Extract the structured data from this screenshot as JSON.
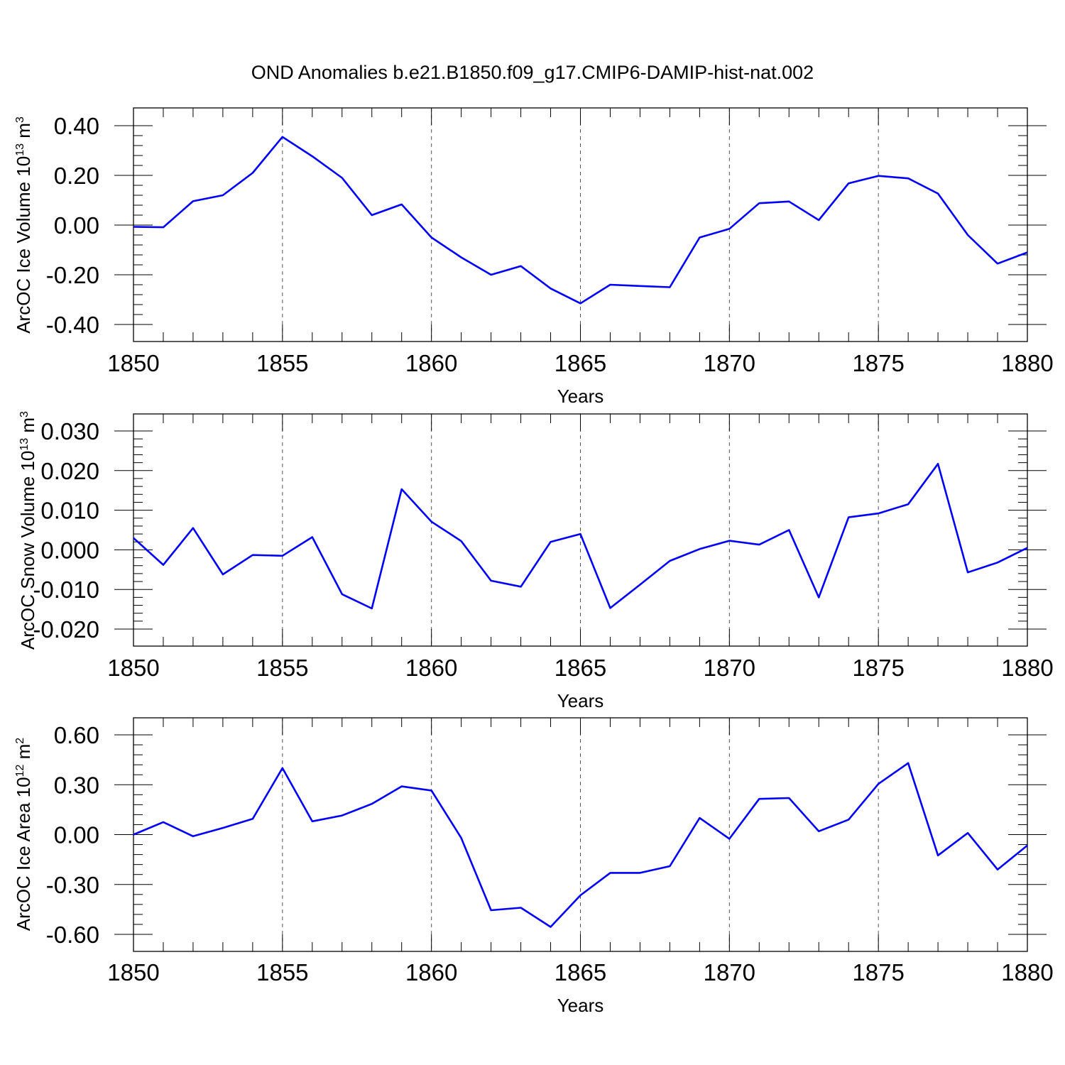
{
  "title": "OND Anomalies b.e21.B1850.f09_g17.CMIP6-DAMIP-hist-nat.002",
  "colors": {
    "line": "#0000ff",
    "axis": "#000000",
    "grid": "#555555"
  },
  "chart_data": [
    {
      "type": "line",
      "xlabel": "Years",
      "ylabel": {
        "text": "ArcOC Ice Volume 10",
        "sup1": "13",
        "mid": " m",
        "sup2": "3"
      },
      "xlim": [
        1850,
        1880
      ],
      "ylim": [
        -0.4,
        0.4
      ],
      "grid": "vertical dashed at major x ticks",
      "x_ticks": [
        "1850",
        "1855",
        "1860",
        "1865",
        "1870",
        "1875",
        "1880"
      ],
      "y_ticks": [
        {
          "value": 0.4,
          "label": "0.40"
        },
        {
          "value": 0.2,
          "label": "0.20"
        },
        {
          "value": 0.0,
          "label": "0.00"
        },
        {
          "value": -0.2,
          "label": "-0.20"
        },
        {
          "value": -0.4,
          "label": "-0.40"
        }
      ],
      "x": [
        1850,
        1851,
        1852,
        1853,
        1854,
        1855,
        1856,
        1857,
        1858,
        1859,
        1860,
        1861,
        1862,
        1863,
        1864,
        1865,
        1866,
        1867,
        1868,
        1869,
        1870,
        1871,
        1872,
        1873,
        1874,
        1875,
        1876,
        1877,
        1878,
        1879,
        1880
      ],
      "y": [
        -0.007,
        -0.009,
        0.096,
        0.12,
        0.21,
        0.355,
        0.277,
        0.19,
        0.04,
        0.083,
        -0.05,
        -0.13,
        -0.2,
        -0.165,
        -0.255,
        -0.315,
        -0.24,
        -0.245,
        -0.25,
        -0.05,
        -0.015,
        0.088,
        0.095,
        0.02,
        0.168,
        0.198,
        0.188,
        0.127,
        -0.04,
        -0.155,
        -0.11
      ]
    },
    {
      "type": "line",
      "xlabel": "Years",
      "ylabel": {
        "text": "ArcOC Snow Volume 10",
        "sup1": "13",
        "mid": " m",
        "sup2": "3"
      },
      "xlim": [
        1850,
        1880
      ],
      "ylim": [
        -0.02,
        0.03
      ],
      "grid": "vertical dashed at major x ticks",
      "x_ticks": [
        "1850",
        "1855",
        "1860",
        "1865",
        "1870",
        "1875",
        "1880"
      ],
      "y_ticks": [
        {
          "value": 0.03,
          "label": "0.030"
        },
        {
          "value": 0.02,
          "label": "0.020"
        },
        {
          "value": 0.01,
          "label": "0.010"
        },
        {
          "value": 0.0,
          "label": "0.000"
        },
        {
          "value": -0.01,
          "label": "-0.010"
        },
        {
          "value": -0.02,
          "label": "-0.020"
        }
      ],
      "x": [
        1850,
        1851,
        1852,
        1853,
        1854,
        1855,
        1856,
        1857,
        1858,
        1859,
        1860,
        1861,
        1862,
        1863,
        1864,
        1865,
        1866,
        1867,
        1868,
        1869,
        1870,
        1871,
        1872,
        1873,
        1874,
        1875,
        1876,
        1877,
        1878,
        1879,
        1880
      ],
      "y": [
        0.003,
        -0.0038,
        0.0055,
        -0.0062,
        -0.0013,
        -0.0015,
        0.0032,
        -0.0112,
        -0.0148,
        0.0153,
        0.0071,
        0.0022,
        -0.0078,
        -0.0093,
        0.002,
        0.004,
        -0.0147,
        -0.0088,
        -0.0028,
        0.0002,
        0.0023,
        0.0013,
        0.005,
        -0.012,
        0.0082,
        0.0092,
        0.0115,
        0.0217,
        -0.0057,
        -0.0032,
        0.0005
      ]
    },
    {
      "type": "line",
      "xlabel": "Years",
      "ylabel": {
        "text": "ArcOC Ice Area 10",
        "sup1": "12",
        "mid": " m",
        "sup2": "2"
      },
      "xlim": [
        1850,
        1880
      ],
      "ylim": [
        -0.6,
        0.6
      ],
      "grid": "vertical dashed at major x ticks",
      "x_ticks": [
        "1850",
        "1855",
        "1860",
        "1865",
        "1870",
        "1875",
        "1880"
      ],
      "y_ticks": [
        {
          "value": 0.6,
          "label": "0.60"
        },
        {
          "value": 0.3,
          "label": "0.30"
        },
        {
          "value": 0.0,
          "label": "0.00"
        },
        {
          "value": -0.3,
          "label": "-0.30"
        },
        {
          "value": -0.6,
          "label": "-0.60"
        }
      ],
      "x": [
        1850,
        1851,
        1852,
        1853,
        1854,
        1855,
        1856,
        1857,
        1858,
        1859,
        1860,
        1861,
        1862,
        1863,
        1864,
        1865,
        1866,
        1867,
        1868,
        1869,
        1870,
        1871,
        1872,
        1873,
        1874,
        1875,
        1876,
        1877,
        1878,
        1879,
        1880
      ],
      "y": [
        0.0,
        0.075,
        -0.01,
        0.04,
        0.095,
        0.4,
        0.08,
        0.115,
        0.185,
        0.29,
        0.265,
        -0.02,
        -0.455,
        -0.44,
        -0.555,
        -0.365,
        -0.23,
        -0.23,
        -0.19,
        0.1,
        -0.025,
        0.215,
        0.22,
        0.02,
        0.09,
        0.305,
        0.43,
        -0.125,
        0.01,
        -0.21,
        -0.065
      ]
    }
  ]
}
